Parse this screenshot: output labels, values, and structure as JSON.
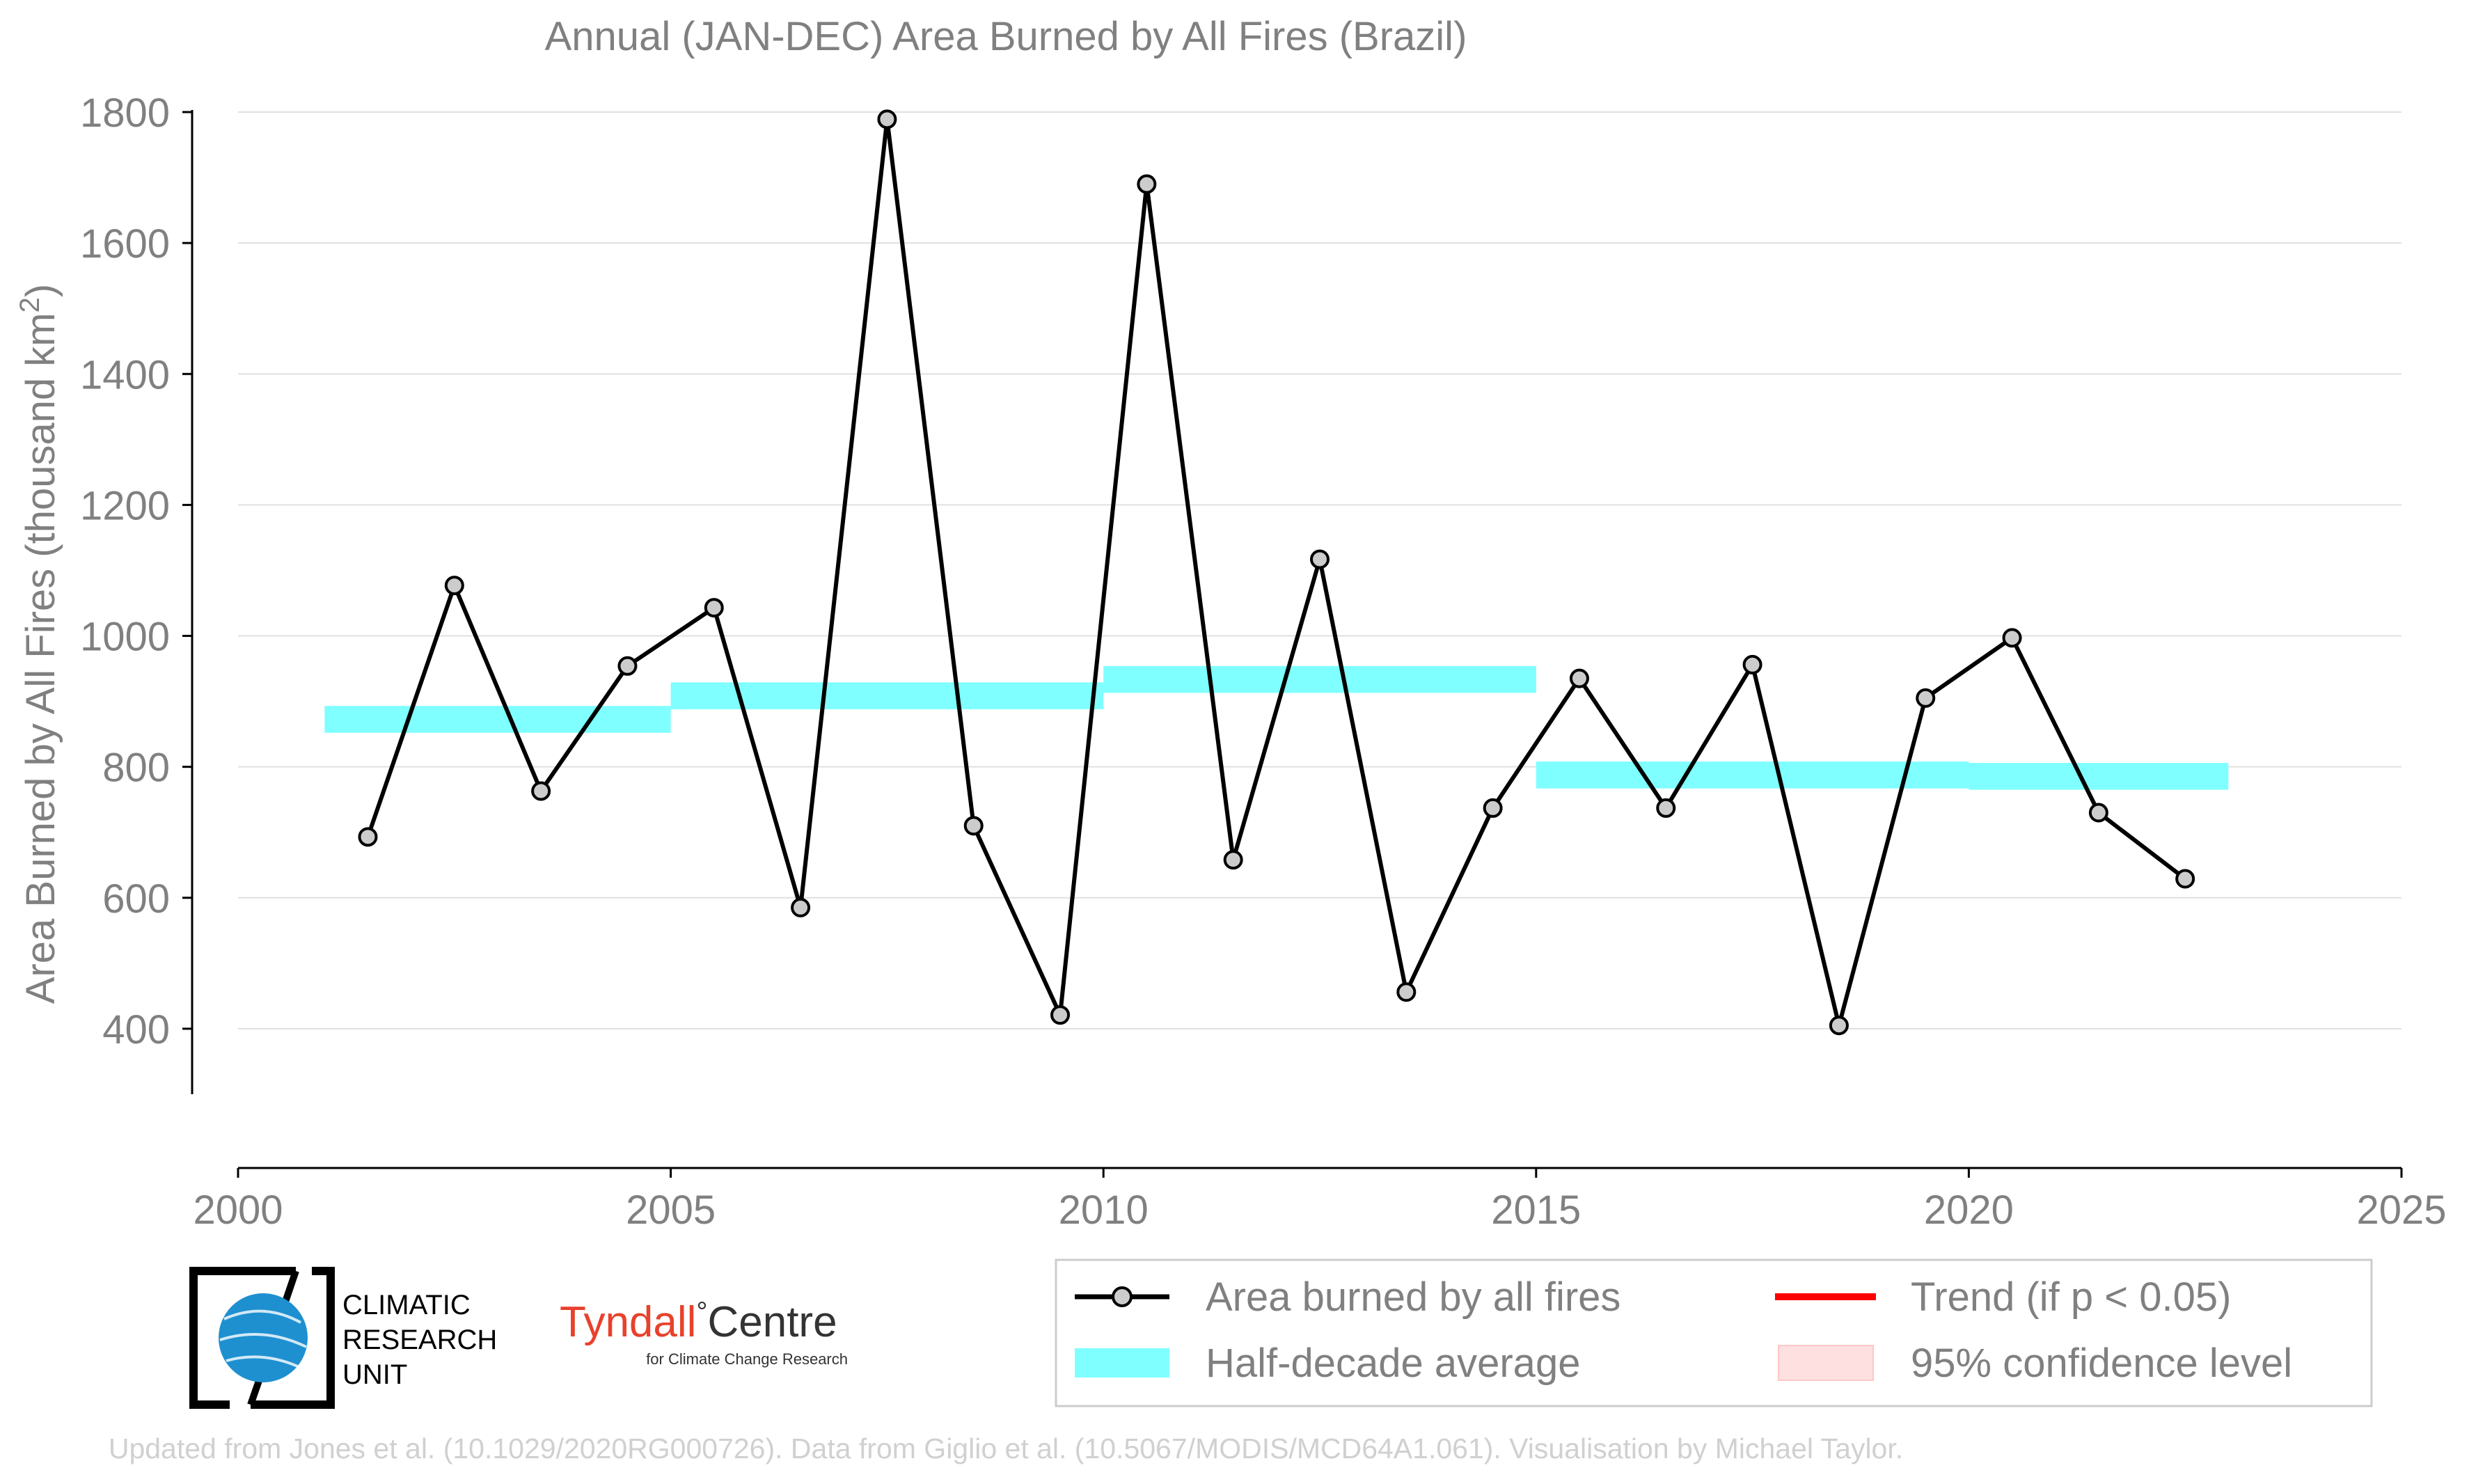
{
  "chart_data": {
    "type": "line",
    "title": "Annual (JAN-DEC) Area Burned by All Fires (Brazil)",
    "ylabel": "Area Burned by All Fires (thousand km",
    "ylabel_sup": "2",
    "ylabel_close": ")",
    "xlim": [
      2000,
      2025
    ],
    "ylim": [
      300,
      1800
    ],
    "xticks": [
      "2000",
      "2005",
      "2010",
      "2015",
      "2020",
      "2025"
    ],
    "yticks": [
      "400",
      "600",
      "800",
      "1000",
      "1200",
      "1400",
      "1600",
      "1800"
    ],
    "grid": true,
    "series": [
      {
        "name": "Area burned by all fires",
        "x": [
          2001.5,
          2002.5,
          2003.5,
          2004.5,
          2005.5,
          2006.5,
          2007.5,
          2008.5,
          2009.5,
          2010.5,
          2011.5,
          2012.5,
          2013.5,
          2014.5,
          2015.5,
          2016.5,
          2017.5,
          2018.5,
          2019.5,
          2020.5,
          2021.5,
          2022.5
        ],
        "values": [
          693,
          1077,
          763,
          954,
          1043,
          585,
          1789,
          710,
          421,
          1690,
          658,
          1117,
          456,
          737,
          935,
          737,
          956,
          405,
          905,
          997,
          730,
          629
        ]
      }
    ],
    "half_decade_average": {
      "name": "Half-decade average",
      "bands": [
        {
          "x0": 2001,
          "x1": 2005,
          "y0": 852,
          "y1": 893
        },
        {
          "x0": 2005,
          "x1": 2010,
          "y0": 888,
          "y1": 929
        },
        {
          "x0": 2010,
          "x1": 2015,
          "y0": 913,
          "y1": 954
        },
        {
          "x0": 2015,
          "x1": 2020,
          "y0": 767,
          "y1": 808
        },
        {
          "x0": 2020,
          "x1": 2023,
          "y0": 765,
          "y1": 806
        }
      ]
    },
    "legend": {
      "position": "bottom-right",
      "entries": [
        "Area burned by all fires",
        "Trend (if p < 0.05)",
        "Half-decade average",
        "95% confidence level"
      ]
    },
    "colors": {
      "line": "#000000",
      "marker_fill": "#cccccc",
      "band": "#7fffff",
      "trend": "#ff0000",
      "confidence": "#ffe0e0",
      "text": "#808080",
      "grid": "#e0e0e0"
    }
  },
  "logos": {
    "cru_line1": "CLIMATIC",
    "cru_line2": "RESEARCH",
    "cru_line3": "UNIT",
    "tyndall_main": "Tyndall",
    "tyndall_degree": "°",
    "tyndall_centre": "Centre",
    "tyndall_sub": "for Climate Change Research"
  },
  "footer": {
    "credit": "Updated from Jones et al. (10.1029/2020RG000726). Data from Giglio et al. (10.5067/MODIS/MCD64A1.061). Visualisation by Michael Taylor."
  }
}
